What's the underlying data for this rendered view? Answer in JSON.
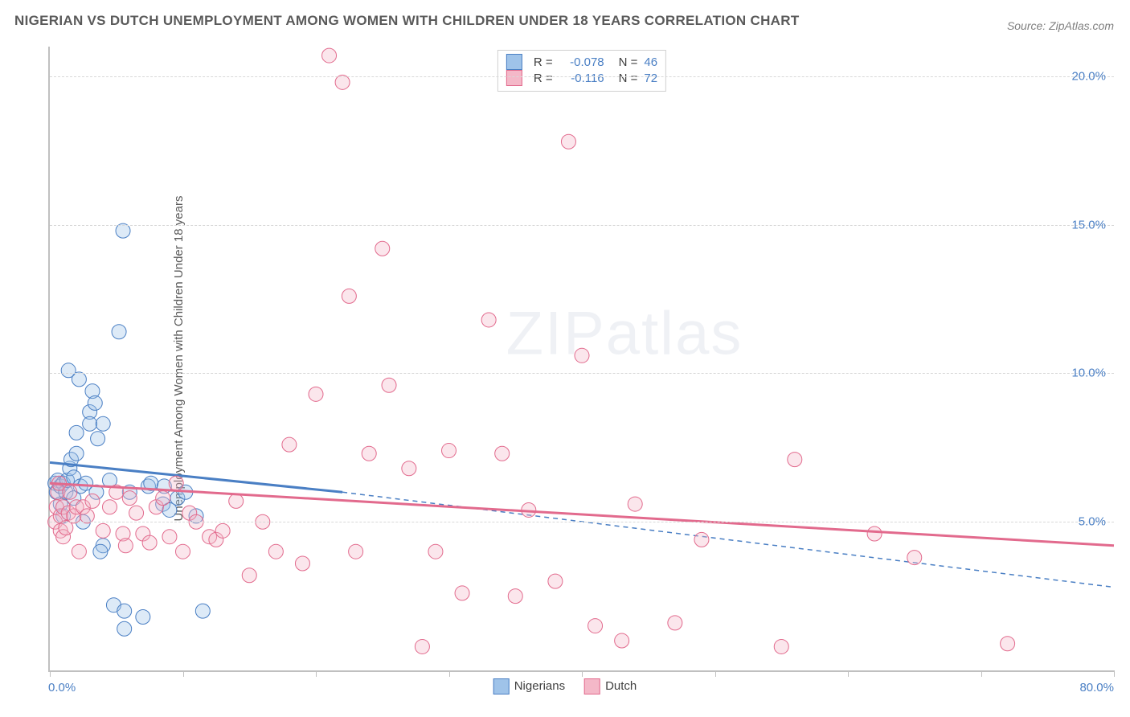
{
  "title": "NIGERIAN VS DUTCH UNEMPLOYMENT AMONG WOMEN WITH CHILDREN UNDER 18 YEARS CORRELATION CHART",
  "source": "Source: ZipAtlas.com",
  "watermark": {
    "bold": "ZIP",
    "thin": "atlas"
  },
  "chart": {
    "type": "scatter",
    "ylabel": "Unemployment Among Women with Children Under 18 years",
    "x_origin_label": "0.0%",
    "x_max_label": "80.0%",
    "xlim": [
      0,
      80
    ],
    "ylim": [
      0,
      21
    ],
    "ytick_labels": [
      "5.0%",
      "10.0%",
      "15.0%",
      "20.0%"
    ],
    "ytick_values": [
      5,
      10,
      15,
      20
    ],
    "xtick_values": [
      0,
      10,
      20,
      30,
      40,
      50,
      60,
      70,
      80
    ],
    "background_color": "#ffffff",
    "grid_color": "#d8d8d8",
    "axis_color": "#c0c0c0",
    "tick_label_color": "#4a7fc4",
    "marker_radius": 9,
    "marker_opacity": 0.35,
    "series": [
      {
        "name": "Nigerians",
        "color_fill": "#9fc3e9",
        "color_stroke": "#4a7fc4",
        "R": "-0.078",
        "N": "46",
        "points": [
          [
            0.4,
            6.3
          ],
          [
            0.5,
            6.0
          ],
          [
            0.6,
            6.4
          ],
          [
            0.8,
            5.6
          ],
          [
            0.8,
            6.2
          ],
          [
            1.0,
            6.3
          ],
          [
            1.0,
            5.2
          ],
          [
            1.2,
            6.0
          ],
          [
            1.3,
            6.4
          ],
          [
            1.4,
            10.1
          ],
          [
            1.5,
            6.8
          ],
          [
            1.6,
            7.1
          ],
          [
            1.8,
            5.8
          ],
          [
            1.8,
            6.5
          ],
          [
            2.0,
            8.0
          ],
          [
            2.0,
            7.3
          ],
          [
            2.2,
            9.8
          ],
          [
            2.3,
            6.2
          ],
          [
            2.5,
            5.0
          ],
          [
            2.7,
            6.3
          ],
          [
            3.0,
            8.7
          ],
          [
            3.0,
            8.3
          ],
          [
            3.2,
            9.4
          ],
          [
            3.4,
            9.0
          ],
          [
            3.5,
            6.0
          ],
          [
            3.6,
            7.8
          ],
          [
            4.0,
            8.3
          ],
          [
            4.0,
            4.2
          ],
          [
            4.5,
            6.4
          ],
          [
            4.8,
            2.2
          ],
          [
            5.2,
            11.4
          ],
          [
            5.5,
            14.8
          ],
          [
            5.6,
            2.0
          ],
          [
            5.6,
            1.4
          ],
          [
            6.0,
            6.0
          ],
          [
            7.0,
            1.8
          ],
          [
            7.4,
            6.2
          ],
          [
            7.6,
            6.3
          ],
          [
            8.5,
            5.6
          ],
          [
            8.6,
            6.2
          ],
          [
            9.0,
            5.4
          ],
          [
            9.6,
            5.8
          ],
          [
            10.2,
            6.0
          ],
          [
            11.0,
            5.2
          ],
          [
            11.5,
            2.0
          ],
          [
            3.8,
            4.0
          ]
        ],
        "trend_solid": {
          "x1": 0,
          "y1": 7.0,
          "x2": 22,
          "y2": 6.0
        },
        "trend_dashed": {
          "x1": 22,
          "y1": 6.0,
          "x2": 80,
          "y2": 2.8
        }
      },
      {
        "name": "Dutch",
        "color_fill": "#f4b8c8",
        "color_stroke": "#e26a8d",
        "R": "-0.116",
        "N": "72",
        "points": [
          [
            0.4,
            5.0
          ],
          [
            0.5,
            5.5
          ],
          [
            0.6,
            6.0
          ],
          [
            0.7,
            6.3
          ],
          [
            0.8,
            5.2
          ],
          [
            0.8,
            4.7
          ],
          [
            1.0,
            5.5
          ],
          [
            1.0,
            4.5
          ],
          [
            1.2,
            4.8
          ],
          [
            1.4,
            5.3
          ],
          [
            1.5,
            6.0
          ],
          [
            1.8,
            5.2
          ],
          [
            2.0,
            5.5
          ],
          [
            2.2,
            4.0
          ],
          [
            2.5,
            5.5
          ],
          [
            2.8,
            5.2
          ],
          [
            3.2,
            5.7
          ],
          [
            4.0,
            4.7
          ],
          [
            4.5,
            5.5
          ],
          [
            5.0,
            6.0
          ],
          [
            5.5,
            4.6
          ],
          [
            5.7,
            4.2
          ],
          [
            6.0,
            5.8
          ],
          [
            6.5,
            5.3
          ],
          [
            7.0,
            4.6
          ],
          [
            7.5,
            4.3
          ],
          [
            8.0,
            5.5
          ],
          [
            8.5,
            5.8
          ],
          [
            9.0,
            4.5
          ],
          [
            9.5,
            6.3
          ],
          [
            10.0,
            4.0
          ],
          [
            10.5,
            5.3
          ],
          [
            11.0,
            5.0
          ],
          [
            12.0,
            4.5
          ],
          [
            12.5,
            4.4
          ],
          [
            13.0,
            4.7
          ],
          [
            14.0,
            5.7
          ],
          [
            15.0,
            3.2
          ],
          [
            16.0,
            5.0
          ],
          [
            17.0,
            4.0
          ],
          [
            18.0,
            7.6
          ],
          [
            19.0,
            3.6
          ],
          [
            20.0,
            9.3
          ],
          [
            21.0,
            20.7
          ],
          [
            22.0,
            19.8
          ],
          [
            22.5,
            12.6
          ],
          [
            23.0,
            4.0
          ],
          [
            24.0,
            7.3
          ],
          [
            25.0,
            14.2
          ],
          [
            25.5,
            9.6
          ],
          [
            27.0,
            6.8
          ],
          [
            28.0,
            0.8
          ],
          [
            29.0,
            4.0
          ],
          [
            30.0,
            7.4
          ],
          [
            31.0,
            2.6
          ],
          [
            33.0,
            11.8
          ],
          [
            34.0,
            7.3
          ],
          [
            35.0,
            2.5
          ],
          [
            36.0,
            5.4
          ],
          [
            38.0,
            3.0
          ],
          [
            39.0,
            17.8
          ],
          [
            40.0,
            10.6
          ],
          [
            41.0,
            1.5
          ],
          [
            43.0,
            1.0
          ],
          [
            44.0,
            5.6
          ],
          [
            47.0,
            1.6
          ],
          [
            49.0,
            4.4
          ],
          [
            55.0,
            0.8
          ],
          [
            56.0,
            7.1
          ],
          [
            62.0,
            4.6
          ],
          [
            65.0,
            3.8
          ],
          [
            72.0,
            0.9
          ]
        ],
        "trend_solid": {
          "x1": 0,
          "y1": 6.3,
          "x2": 80,
          "y2": 4.2
        }
      }
    ]
  },
  "legend": {
    "items": [
      {
        "label": "Nigerians",
        "fill": "#9fc3e9",
        "stroke": "#4a7fc4"
      },
      {
        "label": "Dutch",
        "fill": "#f4b8c8",
        "stroke": "#e26a8d"
      }
    ]
  },
  "stats_box": {
    "rows": [
      {
        "swatch_fill": "#9fc3e9",
        "swatch_stroke": "#4a7fc4",
        "r_label": "R =",
        "r_val": "-0.078",
        "n_label": "N =",
        "n_val": "46"
      },
      {
        "swatch_fill": "#f4b8c8",
        "swatch_stroke": "#e26a8d",
        "r_label": "R =",
        "r_val": "-0.116",
        "n_label": "N =",
        "n_val": "72"
      }
    ]
  }
}
